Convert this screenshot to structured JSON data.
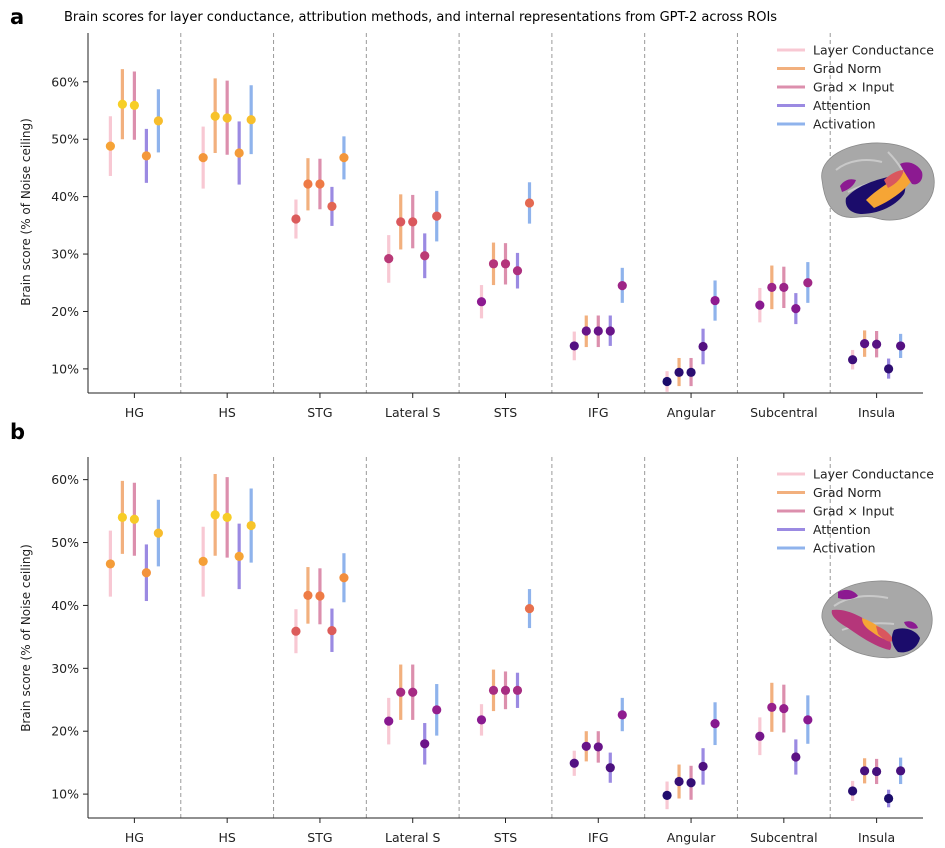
{
  "figure": {
    "title": "Brain scores for layer conductance, attribution methods, and internal representations from GPT-2 across ROIs"
  },
  "palette": {
    "methods": [
      "#f8c8d3",
      "#f2b07e",
      "#dc8fad",
      "#9b8ae2",
      "#8fb3ec"
    ],
    "dot_scale": [
      "#1b0c6b",
      "#5b1285",
      "#8c1a91",
      "#b5367a",
      "#d9575e",
      "#ee7b45",
      "#f6a535",
      "#f7cf26"
    ],
    "brain_gray": "#a8a8a8",
    "brain_overlay": [
      "#1b0c6b",
      "#8c1a91",
      "#d9575e",
      "#f6a535"
    ]
  },
  "chart_data": [
    {
      "panel": "a",
      "type": "scatter",
      "subtype": "dot-with-error-bars",
      "title": "Brain scores for layer conductance, attribution methods, and internal representations from GPT-2 across ROIs",
      "ylabel": "Brain score (% of Noise ceiling)",
      "xlabel": "",
      "ylim": [
        5.8,
        68.5
      ],
      "yticks": [
        10,
        20,
        30,
        40,
        50,
        60
      ],
      "ytick_labels": [
        "10%",
        "20%",
        "30%",
        "40%",
        "50%",
        "60%"
      ],
      "grid": false,
      "legend_position": "top-right",
      "categories": [
        "HG",
        "HS",
        "STG",
        "Lateral S",
        "STS",
        "IFG",
        "Angular",
        "Subcentral",
        "Insula"
      ],
      "series": [
        {
          "name": "Layer Conductance",
          "values": [
            48.8,
            46.8,
            36.1,
            29.2,
            21.7,
            14.0,
            7.8,
            21.1,
            11.6
          ],
          "lower": [
            43.6,
            41.4,
            32.7,
            25.0,
            18.8,
            11.5,
            6.0,
            18.1,
            9.9
          ],
          "upper": [
            54.0,
            52.2,
            39.5,
            33.3,
            24.6,
            16.5,
            9.6,
            24.1,
            13.3
          ]
        },
        {
          "name": "Grad Norm",
          "values": [
            56.1,
            54.0,
            42.2,
            35.6,
            28.3,
            16.6,
            9.4,
            24.2,
            14.4
          ],
          "lower": [
            50.0,
            47.6,
            37.6,
            30.8,
            24.6,
            13.8,
            7.0,
            20.4,
            12.1
          ],
          "upper": [
            62.2,
            60.6,
            46.7,
            40.4,
            32.0,
            19.3,
            11.9,
            28.0,
            16.7
          ]
        },
        {
          "name": "Grad × Input",
          "values": [
            55.9,
            53.7,
            42.2,
            35.6,
            28.3,
            16.6,
            9.4,
            24.2,
            14.3
          ],
          "lower": [
            49.9,
            47.3,
            37.8,
            31.0,
            24.7,
            13.8,
            7.0,
            20.6,
            12.0
          ],
          "upper": [
            61.8,
            60.2,
            46.6,
            40.3,
            31.9,
            19.3,
            11.9,
            27.8,
            16.6
          ]
        },
        {
          "name": "Attention",
          "values": [
            47.1,
            47.6,
            38.3,
            29.7,
            27.1,
            16.6,
            13.9,
            20.5,
            10.0
          ],
          "lower": [
            42.4,
            42.1,
            34.9,
            25.8,
            24.0,
            14.0,
            10.8,
            17.8,
            8.3
          ],
          "upper": [
            51.8,
            53.1,
            41.7,
            33.6,
            30.2,
            19.3,
            17.0,
            23.2,
            11.8
          ]
        },
        {
          "name": "Activation",
          "values": [
            53.2,
            53.4,
            46.8,
            36.6,
            38.9,
            24.5,
            21.9,
            25.0,
            14.0
          ],
          "lower": [
            47.7,
            47.4,
            43.0,
            32.2,
            35.3,
            21.5,
            18.4,
            21.5,
            11.9
          ],
          "upper": [
            58.7,
            59.4,
            50.5,
            41.0,
            42.5,
            27.6,
            25.4,
            28.6,
            16.1
          ]
        }
      ]
    },
    {
      "panel": "b",
      "type": "scatter",
      "subtype": "dot-with-error-bars",
      "title": "",
      "ylabel": "Brain score (% of Noise ceiling)",
      "xlabel": "",
      "ylim": [
        6.2,
        63.6
      ],
      "yticks": [
        10,
        20,
        30,
        40,
        50,
        60
      ],
      "ytick_labels": [
        "10%",
        "20%",
        "30%",
        "40%",
        "50%",
        "60%"
      ],
      "grid": false,
      "legend_position": "top-right",
      "categories": [
        "HG",
        "HS",
        "STG",
        "Lateral S",
        "STS",
        "IFG",
        "Angular",
        "Subcentral",
        "Insula"
      ],
      "series": [
        {
          "name": "Layer Conductance",
          "values": [
            46.6,
            47.0,
            35.9,
            21.6,
            21.8,
            14.9,
            9.8,
            19.2,
            10.5
          ],
          "lower": [
            41.4,
            41.4,
            32.4,
            17.9,
            19.3,
            12.9,
            7.6,
            16.2,
            8.9
          ],
          "upper": [
            51.9,
            52.5,
            39.4,
            25.3,
            24.3,
            16.9,
            12.0,
            22.2,
            12.1
          ]
        },
        {
          "name": "Grad Norm",
          "values": [
            54.0,
            54.4,
            41.6,
            26.2,
            26.5,
            17.6,
            12.0,
            23.8,
            13.7
          ],
          "lower": [
            48.2,
            47.9,
            37.1,
            21.8,
            23.2,
            15.2,
            9.3,
            19.9,
            11.7
          ],
          "upper": [
            59.8,
            60.9,
            46.1,
            30.6,
            29.8,
            20.0,
            14.7,
            27.7,
            15.7
          ]
        },
        {
          "name": "Grad × Input",
          "values": [
            53.7,
            54.0,
            41.5,
            26.2,
            26.5,
            17.5,
            11.8,
            23.6,
            13.6
          ],
          "lower": [
            47.9,
            47.6,
            37.0,
            21.8,
            23.5,
            15.0,
            9.1,
            19.8,
            11.6
          ],
          "upper": [
            59.5,
            60.4,
            45.9,
            30.6,
            29.5,
            20.0,
            14.5,
            27.4,
            15.6
          ]
        },
        {
          "name": "Attention",
          "values": [
            45.2,
            47.8,
            36.0,
            18.0,
            26.5,
            14.2,
            14.4,
            15.9,
            9.3
          ],
          "lower": [
            40.7,
            42.6,
            32.6,
            14.7,
            23.7,
            11.8,
            11.5,
            13.1,
            7.9
          ],
          "upper": [
            49.7,
            53.0,
            39.5,
            21.3,
            29.3,
            16.6,
            17.3,
            18.7,
            10.7
          ]
        },
        {
          "name": "Activation",
          "values": [
            51.5,
            52.7,
            44.4,
            23.4,
            39.5,
            22.6,
            21.2,
            21.8,
            13.7
          ],
          "lower": [
            46.2,
            46.8,
            40.5,
            19.3,
            36.4,
            20.0,
            17.8,
            18.0,
            11.6
          ],
          "upper": [
            56.8,
            58.6,
            48.3,
            27.5,
            42.6,
            25.3,
            24.6,
            25.7,
            15.8
          ]
        }
      ]
    }
  ]
}
